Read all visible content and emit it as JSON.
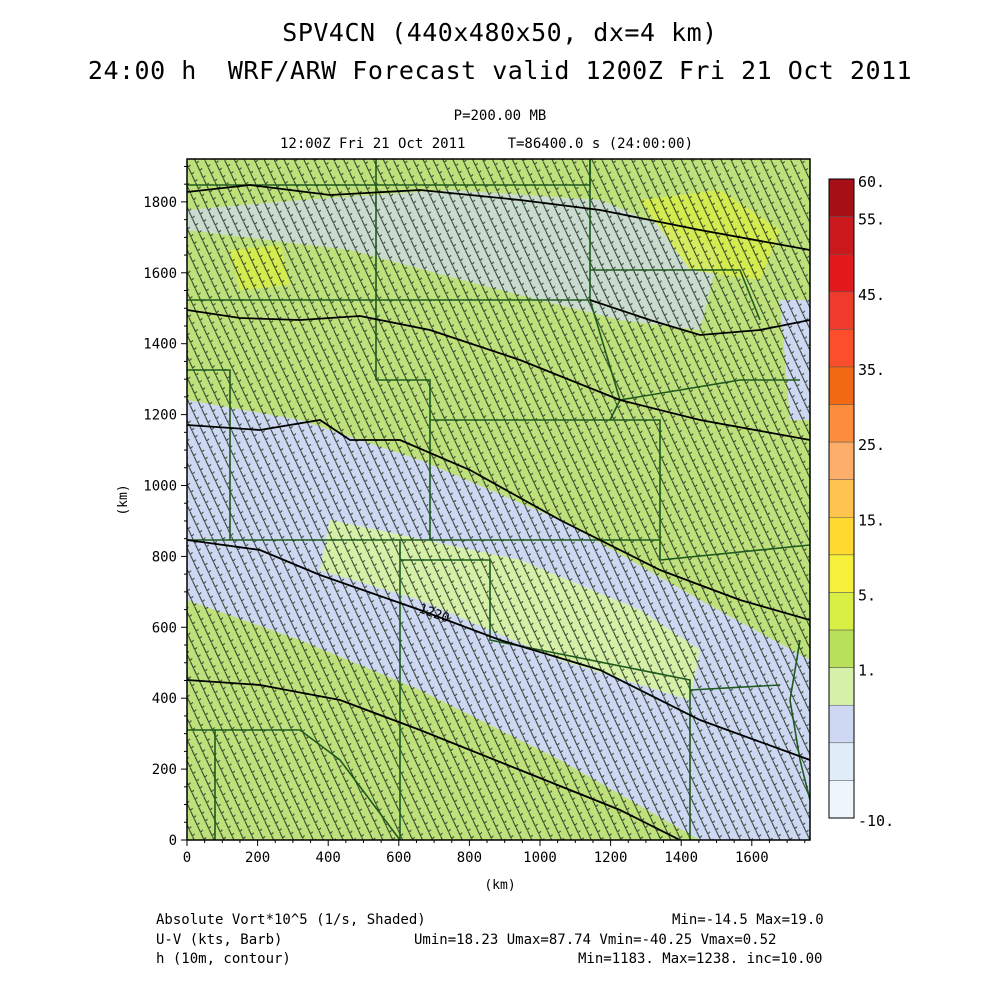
{
  "header": {
    "title_line1": "SPV4CN (440x480x50, dx=4 km)",
    "title_line2": "24:00 h  WRF/ARW Forecast valid 1200Z Fri 21 Oct 2011",
    "level": "P=200.00 MB",
    "valid_time": "12:00Z Fri 21 Oct 2011     T=86400.0 s (24:00:00)"
  },
  "axes": {
    "x_label": "(km)",
    "y_label": "(km)",
    "x_ticks": [
      "0",
      "200",
      "400",
      "600",
      "800",
      "1000",
      "1200",
      "1400",
      "1600"
    ],
    "y_ticks": [
      "0",
      "200",
      "400",
      "600",
      "800",
      "1000",
      "1200",
      "1400",
      "1600",
      "1800"
    ]
  },
  "colorbar": {
    "labels": [
      "60.",
      "55.",
      "45.",
      "35.",
      "25.",
      "15.",
      "5.",
      "1.",
      "-10."
    ],
    "colors": [
      "#a50f15",
      "#cb181d",
      "#e31a1c",
      "#ef3b2c",
      "#fc4e2a",
      "#f16913",
      "#fd8d3c",
      "#fdae6b",
      "#fec44f",
      "#ffd92f",
      "#f6f03a",
      "#d9ef45",
      "#b8e05a",
      "#d7f0a8",
      "#cfd8f3",
      "#e0ecf8",
      "#eef6fd"
    ]
  },
  "map": {
    "contour_label": "1220"
  },
  "footer": {
    "field1": "Absolute Vort*10^5 (1/s, Shaded)",
    "field1_stats": "Min=-14.5 Max=19.0",
    "field2": "U-V (kts, Barb)",
    "field2_stats": "Umin=18.23 Umax=87.74 Vmin=-40.25 Vmax=0.52",
    "field3": "h (10m, contour)",
    "field3_stats": "Min=1183. Max=1238. inc=10.00"
  }
}
